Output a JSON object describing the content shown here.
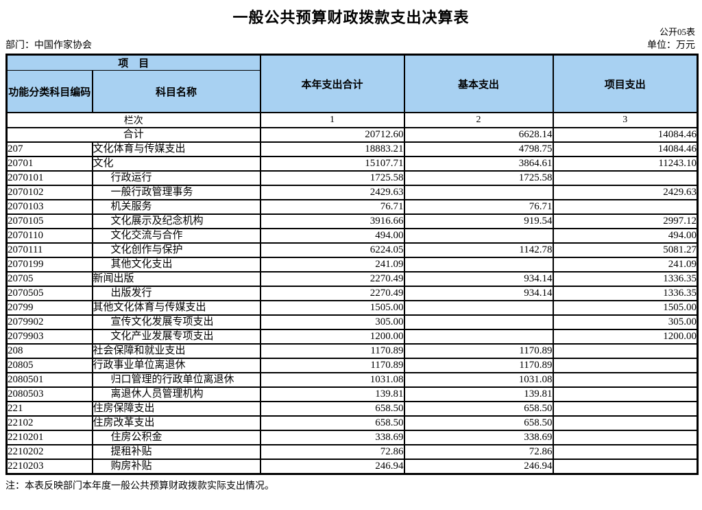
{
  "page": {
    "title": "一般公共预算财政拨款支出决算表",
    "table_code": "公开05表",
    "department_label": "部门：中国作家协会",
    "unit_label": "单位：万元",
    "footnote": "注：本表反映部门本年度一般公共预算财政拨款实际支出情况。"
  },
  "colors": {
    "header_bg": "#A8D1F2",
    "border": "#000000"
  },
  "table": {
    "header": {
      "project_group": "项　目",
      "code_col": "功能分类科目编码",
      "name_col": "科目名称",
      "total_col": "本年支出合计",
      "basic_col": "基本支出",
      "project_col": "项目支出",
      "rank_label": "栏次",
      "rank_cols": [
        "1",
        "2",
        "3"
      ]
    },
    "total_row": {
      "label": "合计",
      "total": "20712.60",
      "basic": "6628.14",
      "project": "14084.46"
    },
    "rows": [
      {
        "code": "207",
        "name": "文化体育与传媒支出",
        "level": 1,
        "total": "18883.21",
        "basic": "4798.75",
        "project": "14084.46"
      },
      {
        "code": "20701",
        "name": "文化",
        "level": 2,
        "total": "15107.71",
        "basic": "3864.61",
        "project": "11243.10"
      },
      {
        "code": "2070101",
        "name": "行政运行",
        "level": 3,
        "total": "1725.58",
        "basic": "1725.58",
        "project": ""
      },
      {
        "code": "2070102",
        "name": "一般行政管理事务",
        "level": 3,
        "total": "2429.63",
        "basic": "",
        "project": "2429.63"
      },
      {
        "code": "2070103",
        "name": "机关服务",
        "level": 3,
        "total": "76.71",
        "basic": "76.71",
        "project": ""
      },
      {
        "code": "2070105",
        "name": "文化展示及纪念机构",
        "level": 3,
        "total": "3916.66",
        "basic": "919.54",
        "project": "2997.12"
      },
      {
        "code": "2070110",
        "name": "文化交流与合作",
        "level": 3,
        "total": "494.00",
        "basic": "",
        "project": "494.00"
      },
      {
        "code": "2070111",
        "name": "文化创作与保护",
        "level": 3,
        "total": "6224.05",
        "basic": "1142.78",
        "project": "5081.27"
      },
      {
        "code": "2070199",
        "name": "其他文化支出",
        "level": 3,
        "total": "241.09",
        "basic": "",
        "project": "241.09"
      },
      {
        "code": "20705",
        "name": "新闻出版",
        "level": 2,
        "total": "2270.49",
        "basic": "934.14",
        "project": "1336.35"
      },
      {
        "code": "2070505",
        "name": "出版发行",
        "level": 3,
        "total": "2270.49",
        "basic": "934.14",
        "project": "1336.35"
      },
      {
        "code": "20799",
        "name": "其他文化体育与传媒支出",
        "level": 2,
        "total": "1505.00",
        "basic": "",
        "project": "1505.00"
      },
      {
        "code": "2079902",
        "name": "宣传文化发展专项支出",
        "level": 3,
        "total": "305.00",
        "basic": "",
        "project": "305.00"
      },
      {
        "code": "2079903",
        "name": "文化产业发展专项支出",
        "level": 3,
        "total": "1200.00",
        "basic": "",
        "project": "1200.00"
      },
      {
        "code": "208",
        "name": "社会保障和就业支出",
        "level": 1,
        "total": "1170.89",
        "basic": "1170.89",
        "project": ""
      },
      {
        "code": "20805",
        "name": "行政事业单位离退休",
        "level": 2,
        "total": "1170.89",
        "basic": "1170.89",
        "project": ""
      },
      {
        "code": "2080501",
        "name": "归口管理的行政单位离退休",
        "level": 3,
        "total": "1031.08",
        "basic": "1031.08",
        "project": ""
      },
      {
        "code": "2080503",
        "name": "离退休人员管理机构",
        "level": 3,
        "total": "139.81",
        "basic": "139.81",
        "project": ""
      },
      {
        "code": "221",
        "name": "住房保障支出",
        "level": 1,
        "total": "658.50",
        "basic": "658.50",
        "project": ""
      },
      {
        "code": "22102",
        "name": "住房改革支出",
        "level": 2,
        "total": "658.50",
        "basic": "658.50",
        "project": ""
      },
      {
        "code": "2210201",
        "name": "住房公积金",
        "level": 3,
        "total": "338.69",
        "basic": "338.69",
        "project": ""
      },
      {
        "code": "2210202",
        "name": "提租补贴",
        "level": 3,
        "total": "72.86",
        "basic": "72.86",
        "project": ""
      },
      {
        "code": "2210203",
        "name": "购房补贴",
        "level": 3,
        "total": "246.94",
        "basic": "246.94",
        "project": ""
      }
    ]
  }
}
